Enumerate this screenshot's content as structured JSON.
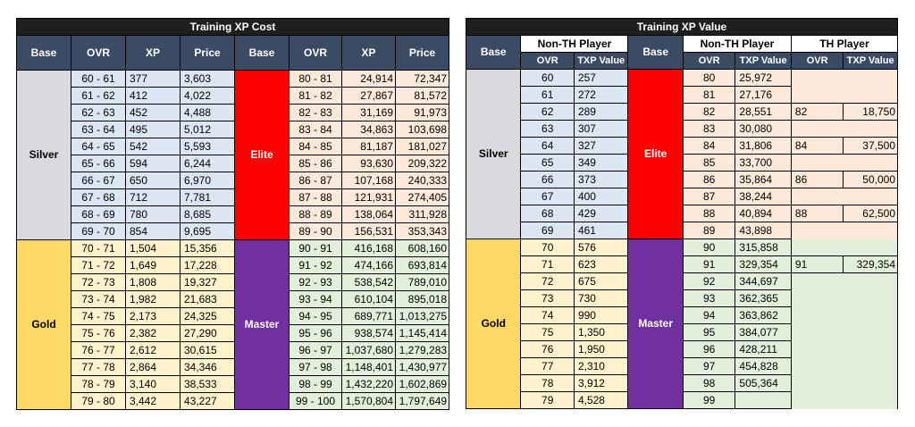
{
  "left": {
    "title": "Training XP Cost",
    "headers": [
      "Base",
      "OVR",
      "XP",
      "Price",
      "Base",
      "OVR",
      "XP",
      "Price"
    ],
    "tiers": {
      "silver": "Silver",
      "elite": "Elite",
      "gold": "Gold",
      "master": "Master"
    },
    "rows": [
      [
        "60 - 61",
        "377",
        "3,603",
        "80 - 81",
        "24,914",
        "72,347"
      ],
      [
        "61 - 62",
        "412",
        "4,022",
        "81 - 82",
        "27,867",
        "81,572"
      ],
      [
        "62 - 63",
        "452",
        "4,488",
        "82 - 83",
        "31,169",
        "91,973"
      ],
      [
        "63 - 64",
        "495",
        "5,012",
        "83 - 84",
        "34,863",
        "103,698"
      ],
      [
        "64 - 65",
        "542",
        "5,593",
        "84 - 85",
        "81,187",
        "181,027"
      ],
      [
        "65 - 66",
        "594",
        "6,244",
        "85 - 86",
        "93,630",
        "209,322"
      ],
      [
        "66 - 67",
        "650",
        "6,970",
        "86 - 87",
        "107,168",
        "240,333"
      ],
      [
        "67 - 68",
        "712",
        "7,781",
        "87 - 88",
        "121,931",
        "274,405"
      ],
      [
        "68 - 69",
        "780",
        "8,685",
        "88 - 89",
        "138,064",
        "311,928"
      ],
      [
        "69 - 70",
        "854",
        "9,695",
        "89 - 90",
        "156,531",
        "353,343"
      ],
      [
        "70 - 71",
        "1,504",
        "15,356",
        "90 - 91",
        "416,168",
        "608,160"
      ],
      [
        "71 - 72",
        "1,649",
        "17,228",
        "91 - 92",
        "474,166",
        "693,814"
      ],
      [
        "72 - 73",
        "1,808",
        "19,327",
        "92 - 93",
        "538,542",
        "789,010"
      ],
      [
        "73 - 74",
        "1,982",
        "21,683",
        "93 - 94",
        "610,104",
        "895,018"
      ],
      [
        "74 - 75",
        "2,173",
        "24,325",
        "94 - 95",
        "689,771",
        "1,013,275"
      ],
      [
        "75 - 76",
        "2,382",
        "27,290",
        "95 - 96",
        "938,574",
        "1,145,414"
      ],
      [
        "76 - 77",
        "2,612",
        "30,615",
        "96 - 97",
        "1,037,680",
        "1,279,283"
      ],
      [
        "77 - 78",
        "2,864",
        "34,346",
        "97 - 98",
        "1,148,401",
        "1,430,977"
      ],
      [
        "78 - 79",
        "3,140",
        "38,533",
        "98 - 99",
        "1,432,220",
        "1,602,869"
      ],
      [
        "79 - 80",
        "3,442",
        "43,227",
        "99 - 100",
        "1,570,804",
        "1,797,649"
      ]
    ]
  },
  "right": {
    "title": "Training XP Value",
    "base_label": "Base",
    "group_non_th": "Non-TH Player",
    "group_th": "TH Player",
    "sub_ovr": "OVR",
    "sub_txp": "TXP Value",
    "tiers": {
      "silver": "Silver",
      "elite": "Elite",
      "gold": "Gold",
      "master": "Master"
    },
    "rows": [
      [
        "60",
        "257",
        "80",
        "25,972",
        "",
        ""
      ],
      [
        "61",
        "272",
        "81",
        "27,176",
        "",
        ""
      ],
      [
        "62",
        "289",
        "82",
        "28,551",
        "82",
        "18,750"
      ],
      [
        "63",
        "307",
        "83",
        "30,080",
        "",
        ""
      ],
      [
        "64",
        "327",
        "84",
        "31,806",
        "84",
        "37,500"
      ],
      [
        "65",
        "349",
        "85",
        "33,700",
        "",
        ""
      ],
      [
        "66",
        "373",
        "86",
        "35,864",
        "86",
        "50,000"
      ],
      [
        "67",
        "400",
        "87",
        "38,244",
        "",
        ""
      ],
      [
        "68",
        "429",
        "88",
        "40,894",
        "88",
        "62,500"
      ],
      [
        "69",
        "461",
        "89",
        "43,898",
        "",
        ""
      ],
      [
        "70",
        "576",
        "90",
        "315,858",
        "",
        ""
      ],
      [
        "71",
        "623",
        "91",
        "329,354",
        "91",
        "329,354"
      ],
      [
        "72",
        "675",
        "92",
        "344,697",
        "",
        ""
      ],
      [
        "73",
        "730",
        "93",
        "362,365",
        "",
        ""
      ],
      [
        "74",
        "990",
        "94",
        "363,862",
        "",
        ""
      ],
      [
        "75",
        "1,350",
        "95",
        "384,077",
        "",
        ""
      ],
      [
        "76",
        "1,950",
        "96",
        "428,211",
        "",
        ""
      ],
      [
        "77",
        "2,310",
        "97",
        "454,828",
        "",
        ""
      ],
      [
        "78",
        "3,912",
        "98",
        "505,364",
        "",
        ""
      ],
      [
        "79",
        "4,528",
        "99",
        "",
        "",
        ""
      ]
    ]
  }
}
